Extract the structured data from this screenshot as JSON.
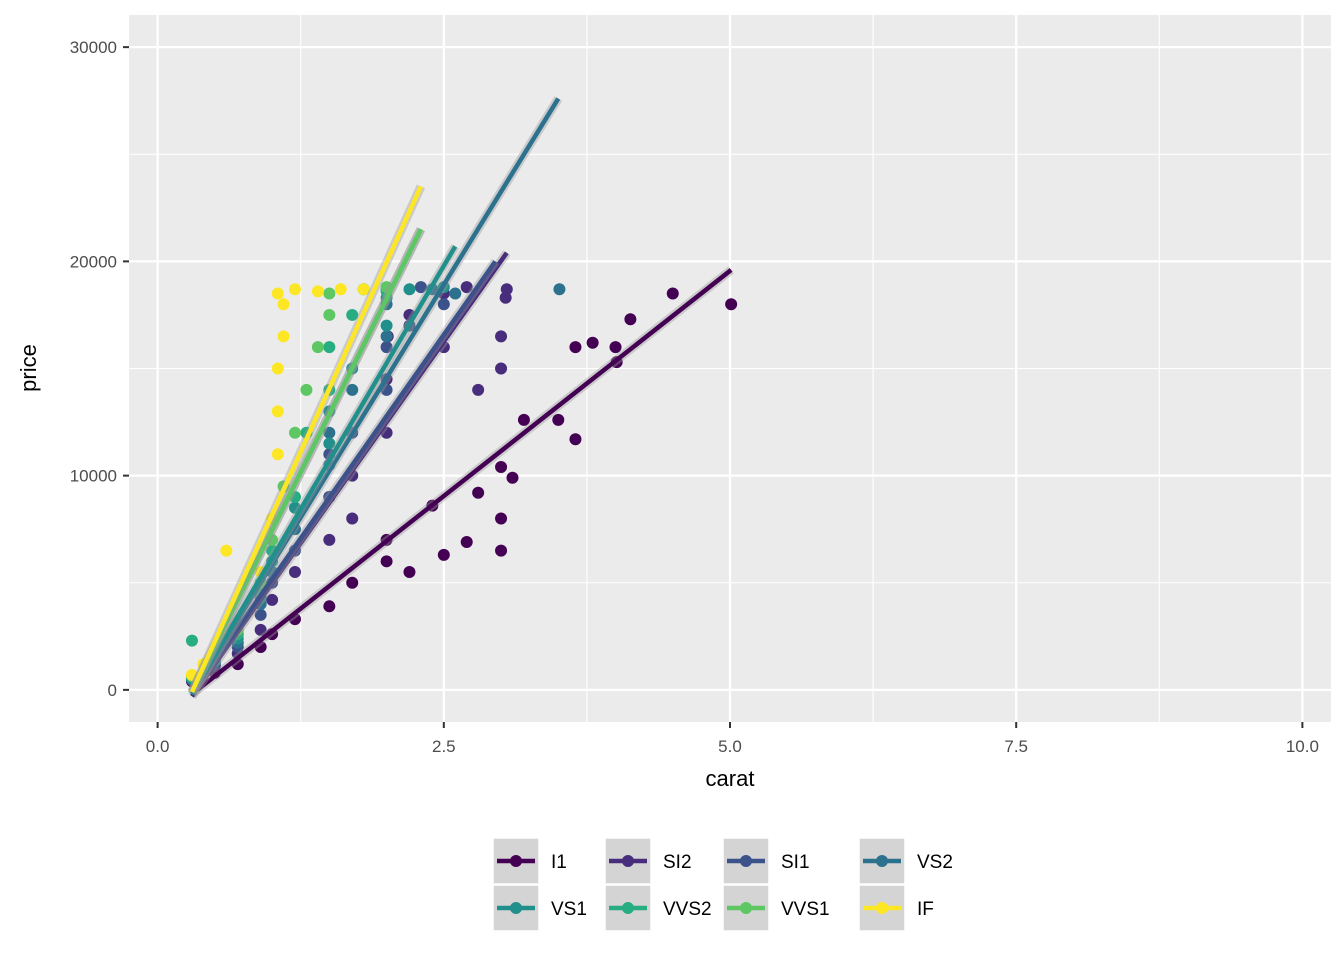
{
  "chart_data": {
    "type": "scatter",
    "title": "",
    "xlabel": "carat",
    "ylabel": "price",
    "xlim": [
      -0.25,
      10.25
    ],
    "ylim": [
      -1500,
      31500
    ],
    "x_ticks": [
      0.0,
      2.5,
      5.0,
      7.5,
      10.0
    ],
    "x_tick_labels": [
      "0.0",
      "2.5",
      "5.0",
      "7.5",
      "10.0"
    ],
    "y_ticks": [
      0,
      10000,
      20000,
      30000
    ],
    "y_tick_labels": [
      "0",
      "10000",
      "20000",
      "30000"
    ],
    "grid": true,
    "legend_position": "bottom",
    "legend_columns": 4,
    "series": [
      {
        "name": "I1",
        "color": "#440154",
        "fit": {
          "x": [
            0.3,
            5.01
          ],
          "y": [
            -200,
            19600
          ]
        },
        "points": [
          [
            0.3,
            400
          ],
          [
            0.5,
            800
          ],
          [
            0.7,
            1200
          ],
          [
            0.9,
            2000
          ],
          [
            1.0,
            2600
          ],
          [
            1.2,
            3300
          ],
          [
            1.5,
            3900
          ],
          [
            1.7,
            5000
          ],
          [
            2.0,
            6000
          ],
          [
            2.0,
            7000
          ],
          [
            2.2,
            5500
          ],
          [
            2.5,
            6300
          ],
          [
            2.7,
            6900
          ],
          [
            3.0,
            6500
          ],
          [
            3.0,
            8000
          ],
          [
            2.4,
            8600
          ],
          [
            2.8,
            9200
          ],
          [
            3.0,
            10400
          ],
          [
            3.1,
            9900
          ],
          [
            3.2,
            12600
          ],
          [
            3.5,
            12600
          ],
          [
            3.65,
            16000
          ],
          [
            3.65,
            11700
          ],
          [
            3.8,
            16200
          ],
          [
            4.0,
            16000
          ],
          [
            4.01,
            15300
          ],
          [
            4.13,
            17300
          ],
          [
            4.5,
            18500
          ],
          [
            5.01,
            18000
          ]
        ]
      },
      {
        "name": "SI2",
        "color": "#472d7b",
        "fit": {
          "x": [
            0.3,
            3.05
          ],
          "y": [
            -300,
            20400
          ]
        },
        "points": [
          [
            0.3,
            500
          ],
          [
            0.5,
            1100
          ],
          [
            0.7,
            1700
          ],
          [
            0.9,
            2800
          ],
          [
            1.0,
            4200
          ],
          [
            1.2,
            5500
          ],
          [
            1.5,
            7000
          ],
          [
            1.5,
            9000
          ],
          [
            1.7,
            8000
          ],
          [
            1.7,
            10000
          ],
          [
            2.0,
            12000
          ],
          [
            2.0,
            14500
          ],
          [
            2.01,
            16500
          ],
          [
            2.2,
            17500
          ],
          [
            2.5,
            16000
          ],
          [
            2.5,
            18500
          ],
          [
            2.8,
            14000
          ],
          [
            3.0,
            16500
          ],
          [
            3.0,
            15000
          ],
          [
            3.04,
            18300
          ],
          [
            3.05,
            18700
          ],
          [
            2.7,
            18800
          ]
        ]
      },
      {
        "name": "SI1",
        "color": "#3b528b",
        "fit": {
          "x": [
            0.3,
            2.95
          ],
          "y": [
            -150,
            20000
          ]
        },
        "points": [
          [
            0.3,
            450
          ],
          [
            0.5,
            1200
          ],
          [
            0.7,
            2000
          ],
          [
            0.9,
            3500
          ],
          [
            1.0,
            5000
          ],
          [
            1.2,
            6500
          ],
          [
            1.5,
            9000
          ],
          [
            1.5,
            11000
          ],
          [
            1.7,
            12000
          ],
          [
            2.0,
            14000
          ],
          [
            2.0,
            16000
          ],
          [
            2.2,
            17000
          ],
          [
            2.5,
            18000
          ],
          [
            2.0,
            18700
          ],
          [
            2.3,
            18800
          ]
        ]
      },
      {
        "name": "VS2",
        "color": "#2c728e",
        "fit": {
          "x": [
            0.3,
            3.5
          ],
          "y": [
            -200,
            27600
          ]
        },
        "points": [
          [
            0.3,
            500
          ],
          [
            0.5,
            1300
          ],
          [
            0.7,
            2200
          ],
          [
            0.9,
            4000
          ],
          [
            1.0,
            5500
          ],
          [
            1.2,
            7500
          ],
          [
            1.5,
            10500
          ],
          [
            1.5,
            12000
          ],
          [
            1.7,
            14000
          ],
          [
            2.0,
            16500
          ],
          [
            2.0,
            18000
          ],
          [
            2.4,
            18700
          ],
          [
            2.6,
            18500
          ],
          [
            3.51,
            18700
          ]
        ]
      },
      {
        "name": "VS1",
        "color": "#21908c",
        "fit": {
          "x": [
            0.3,
            2.6
          ],
          "y": [
            -200,
            20700
          ]
        },
        "points": [
          [
            0.3,
            550
          ],
          [
            0.5,
            1400
          ],
          [
            0.7,
            2400
          ],
          [
            0.9,
            4300
          ],
          [
            1.0,
            6000
          ],
          [
            1.2,
            8500
          ],
          [
            1.5,
            11500
          ],
          [
            1.5,
            13000
          ],
          [
            1.7,
            15000
          ],
          [
            2.0,
            17000
          ],
          [
            2.0,
            18300
          ],
          [
            2.2,
            18700
          ],
          [
            2.5,
            18800
          ]
        ]
      },
      {
        "name": "VVS2",
        "color": "#27ad81",
        "fit": {
          "x": [
            0.3,
            2.3
          ],
          "y": [
            -100,
            21500
          ]
        },
        "points": [
          [
            0.3,
            600
          ],
          [
            0.3,
            2300
          ],
          [
            0.5,
            1500
          ],
          [
            0.7,
            2600
          ],
          [
            0.9,
            4600
          ],
          [
            1.0,
            6500
          ],
          [
            1.2,
            9000
          ],
          [
            1.3,
            12000
          ],
          [
            1.5,
            14000
          ],
          [
            1.5,
            16000
          ],
          [
            1.7,
            17500
          ],
          [
            1.8,
            18700
          ],
          [
            2.0,
            18600
          ]
        ]
      },
      {
        "name": "VVS1",
        "color": "#5dc863",
        "fit": {
          "x": [
            0.3,
            2.3
          ],
          "y": [
            -100,
            21500
          ]
        },
        "points": [
          [
            0.3,
            650
          ],
          [
            0.5,
            1600
          ],
          [
            0.7,
            2800
          ],
          [
            0.9,
            5000
          ],
          [
            1.0,
            7000
          ],
          [
            1.1,
            9500
          ],
          [
            1.2,
            12000
          ],
          [
            1.3,
            14000
          ],
          [
            1.4,
            16000
          ],
          [
            1.5,
            17500
          ],
          [
            1.5,
            18500
          ],
          [
            1.8,
            18700
          ],
          [
            2.0,
            18800
          ]
        ]
      },
      {
        "name": "IF",
        "color": "#fde725",
        "fit": {
          "x": [
            0.3,
            2.3
          ],
          "y": [
            -100,
            23500
          ]
        },
        "points": [
          [
            0.3,
            700
          ],
          [
            0.4,
            1200
          ],
          [
            0.5,
            1800
          ],
          [
            0.6,
            2400
          ],
          [
            0.6,
            6500
          ],
          [
            0.7,
            3000
          ],
          [
            0.9,
            5500
          ],
          [
            1.0,
            8000
          ],
          [
            1.05,
            11000
          ],
          [
            1.05,
            13000
          ],
          [
            1.05,
            15000
          ],
          [
            1.1,
            16500
          ],
          [
            1.1,
            18000
          ],
          [
            1.05,
            18500
          ],
          [
            1.2,
            18700
          ],
          [
            1.4,
            18600
          ],
          [
            1.6,
            18700
          ],
          [
            1.8,
            18700
          ]
        ]
      }
    ]
  }
}
